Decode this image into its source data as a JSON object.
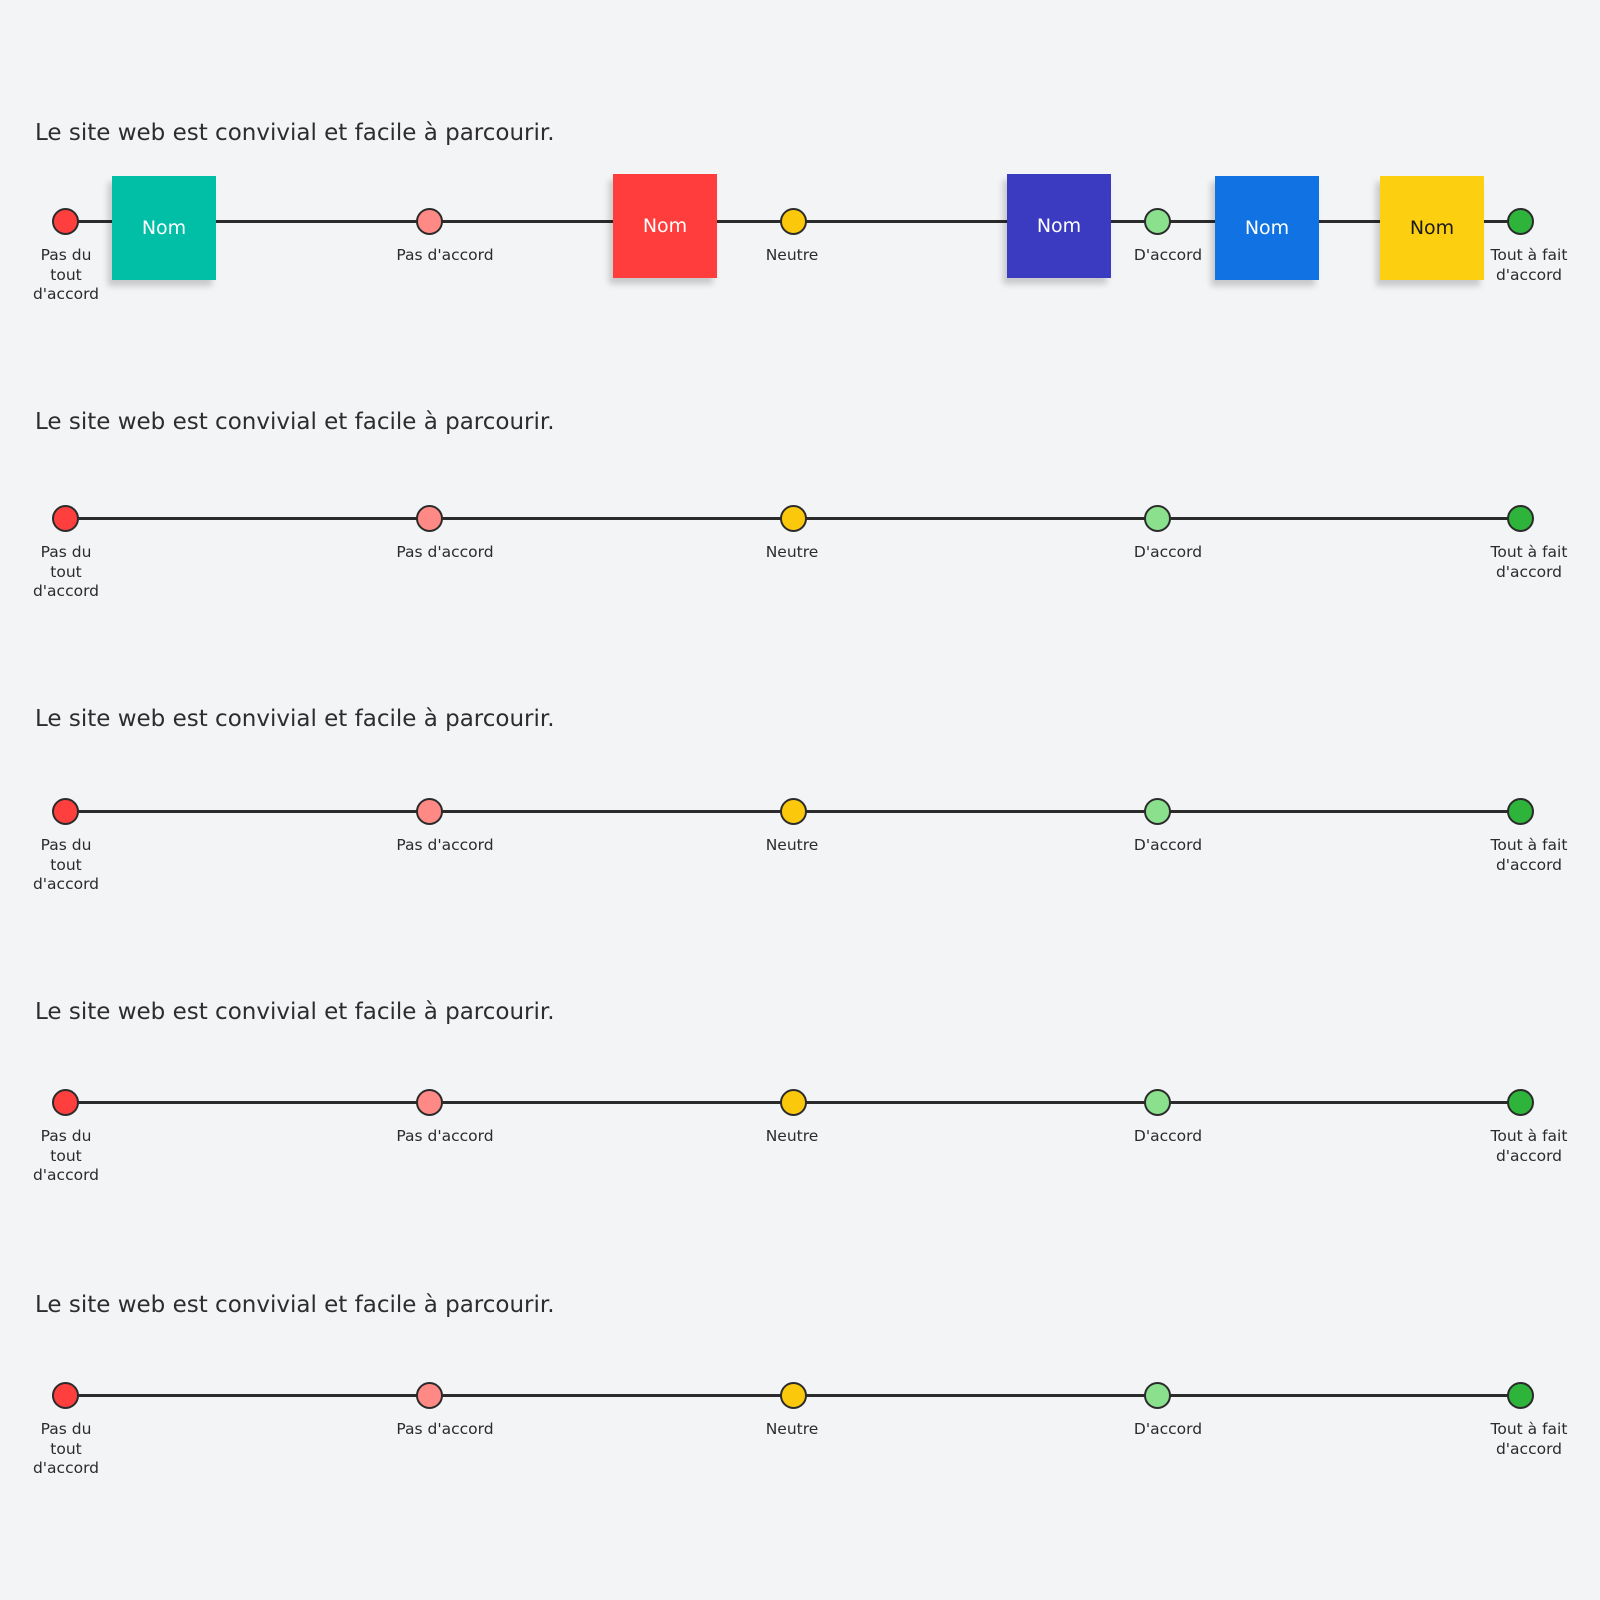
{
  "question": "Le site web est convivial et facile à parcourir.",
  "scale": [
    {
      "label": "Pas du tout d'accord",
      "color": "#ff3e3e",
      "icon": "circle-marker"
    },
    {
      "label": "Pas d'accord",
      "color": "#ff8a85",
      "icon": "circle-marker"
    },
    {
      "label": "Neutre",
      "color": "#fcc80c",
      "icon": "circle-marker"
    },
    {
      "label": "D'accord",
      "color": "#8be08e",
      "icon": "circle-marker"
    },
    {
      "label": "Tout à fait d'accord",
      "color": "#2eb33b",
      "icon": "circle-marker"
    }
  ],
  "rows": [
    {
      "question": "Le site web est convivial et facile à parcourir.",
      "notes": [
        {
          "label": "Nom",
          "color": "#00bfa6",
          "text_color": "#ffffff"
        },
        {
          "label": "Nom",
          "color": "#ff3d3d",
          "text_color": "#ffffff"
        },
        {
          "label": "Nom",
          "color": "#3a3bc1",
          "text_color": "#ffffff"
        },
        {
          "label": "Nom",
          "color": "#1072e3",
          "text_color": "#ffffff"
        },
        {
          "label": "Nom",
          "color": "#fccf10",
          "text_color": "#1a1a1a"
        }
      ]
    },
    {
      "question": "Le site web est convivial et facile à parcourir.",
      "notes": []
    },
    {
      "question": "Le site web est convivial et facile à parcourir.",
      "notes": []
    },
    {
      "question": "Le site web est convivial et facile à parcourir.",
      "notes": []
    },
    {
      "question": "Le site web est convivial et facile à parcourir.",
      "notes": []
    }
  ]
}
